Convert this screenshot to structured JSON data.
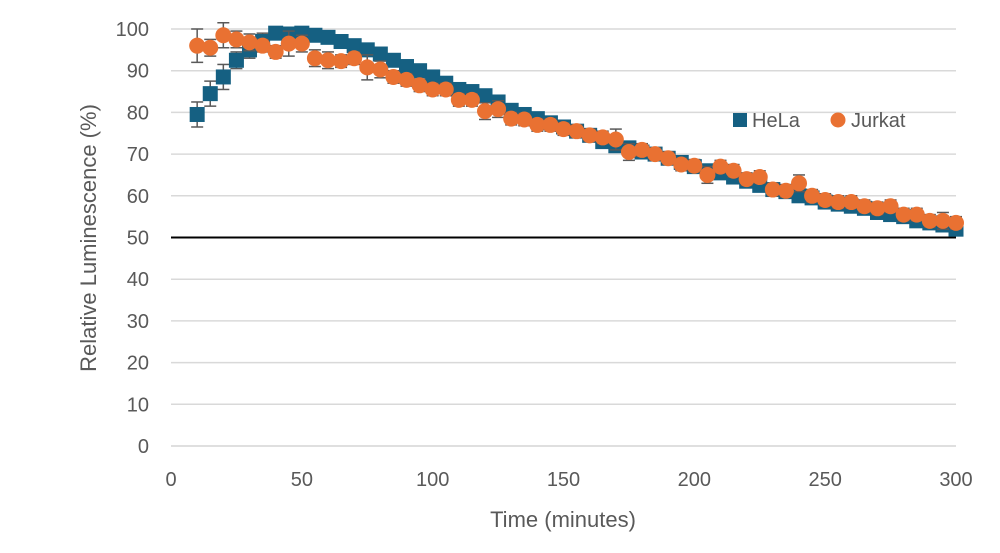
{
  "chart_data": {
    "type": "scatter",
    "title": "",
    "xlabel": "Time (minutes)",
    "ylabel": "Relative Luminescence (%)",
    "xlim": [
      0,
      300
    ],
    "ylim": [
      0,
      100
    ],
    "xticks": [
      0,
      50,
      100,
      150,
      200,
      250,
      300
    ],
    "yticks": [
      0,
      10,
      20,
      30,
      40,
      50,
      60,
      70,
      80,
      90,
      100
    ],
    "grid": "horizontal",
    "legend_position": "right",
    "reference_line": {
      "y": 50,
      "color": "#000000"
    },
    "x": [
      10,
      15,
      20,
      25,
      30,
      35,
      40,
      45,
      50,
      55,
      60,
      65,
      70,
      75,
      80,
      85,
      90,
      95,
      100,
      105,
      110,
      115,
      120,
      125,
      130,
      135,
      140,
      145,
      150,
      155,
      160,
      165,
      170,
      175,
      180,
      185,
      190,
      195,
      200,
      205,
      210,
      215,
      220,
      225,
      230,
      235,
      240,
      245,
      250,
      255,
      260,
      265,
      270,
      275,
      280,
      285,
      290,
      295,
      300
    ],
    "series": [
      {
        "name": "HeLa",
        "marker": "square",
        "color": "#156082",
        "values": [
          79.5,
          84.5,
          88.5,
          92.5,
          95,
          97,
          99,
          98.8,
          99,
          98.5,
          98,
          97,
          96,
          95,
          94,
          92.5,
          91,
          90,
          88.5,
          87,
          85.5,
          85,
          84,
          82.5,
          80.5,
          79.5,
          78.5,
          77.5,
          76.5,
          75.5,
          74.5,
          73,
          72,
          71.5,
          70.5,
          70,
          69,
          68,
          67,
          66,
          65.5,
          64.5,
          63.5,
          62.5,
          61.5,
          61,
          60,
          59.5,
          58.5,
          58,
          57.5,
          57,
          56,
          55.5,
          55,
          54,
          53.5,
          53,
          52
        ],
        "errors": [
          3,
          3,
          3,
          2,
          2,
          2,
          1.5,
          1.5,
          1.5,
          1.5,
          1.5,
          1.5,
          1.5,
          1.5,
          1.5,
          1.5,
          1.5,
          1.5,
          1.5,
          1.5,
          1.5,
          1.5,
          1.5,
          1.5,
          1.5,
          1.5,
          1.5,
          1.5,
          1.5,
          1.5,
          1.5,
          1.5,
          1.5,
          1.5,
          1.5,
          1.5,
          1.5,
          1.5,
          1.5,
          1.5,
          1.5,
          1.5,
          1.5,
          1.5,
          1.5,
          1.5,
          1.5,
          1.5,
          1.5,
          1.5,
          1.5,
          1.5,
          1.5,
          1.5,
          1.5,
          1.5,
          1.5,
          1.5,
          1.5
        ]
      },
      {
        "name": "Jurkat",
        "marker": "circle",
        "color": "#E97132",
        "values": [
          96,
          95.5,
          98.5,
          97.5,
          96.8,
          96,
          94.5,
          96.5,
          96.5,
          93,
          92.5,
          92.3,
          93,
          90.8,
          90.3,
          88.5,
          87.8,
          86.5,
          85.5,
          85.5,
          83,
          83,
          80.3,
          80.8,
          78.5,
          78.3,
          77,
          77,
          76,
          75.5,
          74.5,
          74,
          73.5,
          70.5,
          71,
          70,
          69,
          67.5,
          67.2,
          65,
          67,
          66,
          64,
          64.5,
          61.5,
          61.2,
          63,
          60,
          59,
          58.5,
          58.5,
          57.5,
          57,
          57.5,
          55.5,
          55.5,
          54,
          54,
          53.5
        ],
        "errors": [
          4,
          2,
          3,
          2,
          2,
          1.5,
          1.5,
          3,
          2,
          2,
          2,
          1.5,
          1.5,
          3,
          2,
          1.5,
          1.5,
          1.5,
          1.5,
          1.5,
          1.5,
          1.5,
          2,
          2,
          1.5,
          1.5,
          1.5,
          1.5,
          1.5,
          1.5,
          1.5,
          1.5,
          2.5,
          2,
          1.5,
          1.5,
          1.5,
          1.5,
          1.5,
          2,
          1.5,
          1.5,
          1.5,
          1.5,
          1.5,
          1.5,
          2,
          1.5,
          1.5,
          1.5,
          1.5,
          1.5,
          1.5,
          1.5,
          1.5,
          1.5,
          1.5,
          2,
          1.5
        ]
      }
    ]
  }
}
